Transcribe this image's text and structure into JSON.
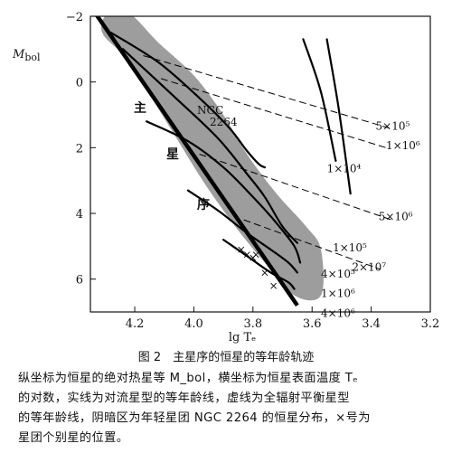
{
  "chart_data": {
    "type": "line",
    "xlabel": "lg Tₑ",
    "ylabel": "M_bol",
    "ylabel_main": "M",
    "ylabel_sub": "bol",
    "xlim": [
      4.35,
      3.2
    ],
    "ylim": [
      -2,
      7
    ],
    "x_ticks": [
      4.2,
      4.0,
      3.8,
      3.6,
      3.4,
      3.2
    ],
    "x_tick_labels": [
      "4.2",
      "4.0",
      "3.8",
      "3.6",
      "3.4",
      "3.2"
    ],
    "y_ticks": [
      -2,
      0,
      2,
      4,
      6
    ],
    "y_tick_labels": [
      "−2",
      "0",
      "2",
      "4",
      "6"
    ],
    "main_sequence_label": [
      "主",
      "星",
      "序"
    ],
    "cluster_label": [
      "NGC",
      "2264"
    ],
    "main_sequence": {
      "x": [
        4.33,
        3.65
      ],
      "y": [
        -2.05,
        6.8
      ]
    },
    "shaded_region": {
      "x": [
        4.29,
        4.22,
        4.12,
        4.0,
        3.9,
        3.82,
        3.72,
        3.62,
        3.57,
        3.57,
        3.66,
        3.76,
        3.86,
        3.97,
        4.08,
        4.22,
        4.31
      ],
      "y": [
        -2.1,
        -2.1,
        -1.2,
        -0.2,
        1.0,
        2.2,
        3.4,
        4.4,
        5.1,
        6.5,
        6.5,
        5.5,
        4.4,
        3.0,
        1.4,
        -0.6,
        -1.5
      ]
    },
    "series": [
      {
        "name": "1×10⁴",
        "style": "solid",
        "x": [
          4.28,
          4.12,
          3.98,
          3.88,
          3.82,
          3.78,
          3.76
        ],
        "y": [
          -1.5,
          -0.6,
          0.5,
          1.4,
          2.1,
          2.5,
          2.6
        ]
      },
      {
        "name": "1×10⁵",
        "style": "solid",
        "x": [
          4.24,
          4.06,
          3.92,
          3.82,
          3.76,
          3.7,
          3.65
        ],
        "y": [
          -1.0,
          0.5,
          1.7,
          2.8,
          3.5,
          4.4,
          4.9
        ]
      },
      {
        "name": "4×10⁵",
        "style": "solid",
        "x": [
          4.16,
          4.02,
          3.9,
          3.8,
          3.72,
          3.66,
          3.64
        ],
        "y": [
          1.2,
          1.8,
          2.6,
          3.5,
          4.3,
          5.0,
          5.5
        ]
      },
      {
        "name": "1×10⁶",
        "style": "solid",
        "x": [
          4.02,
          3.92,
          3.82,
          3.74,
          3.68,
          3.65
        ],
        "y": [
          3.3,
          3.9,
          4.6,
          5.1,
          5.5,
          5.8
        ]
      },
      {
        "name": "4×10⁶",
        "style": "solid",
        "x": [
          3.9,
          3.82,
          3.74,
          3.68,
          3.66
        ],
        "y": [
          4.8,
          5.3,
          5.8,
          6.1,
          6.3
        ]
      },
      {
        "name": "",
        "style": "solid",
        "x": [
          3.63,
          3.57,
          3.52
        ],
        "y": [
          -1.3,
          0.3,
          2.4
        ]
      },
      {
        "name": "",
        "style": "solid",
        "x": [
          3.55,
          3.51,
          3.47
        ],
        "y": [
          -1.3,
          0.8,
          3.4
        ]
      },
      {
        "name": "5×10⁵",
        "style": "dashed",
        "x": [
          4.17,
          3.34
        ],
        "y": [
          -0.8,
          1.4
        ]
      },
      {
        "name": "1×10⁶",
        "style": "dashed",
        "x": [
          4.11,
          3.35
        ],
        "y": [
          -0.1,
          2.0
        ]
      },
      {
        "name": "5×10⁶",
        "style": "dashed",
        "x": [
          3.98,
          3.33
        ],
        "y": [
          2.2,
          4.2
        ]
      },
      {
        "name": "2×10⁷",
        "style": "dashed",
        "x": [
          3.83,
          3.37
        ],
        "y": [
          4.2,
          5.7
        ]
      }
    ],
    "crosses": {
      "x": [
        3.84,
        3.82,
        3.8,
        3.79,
        3.76,
        3.73
      ],
      "y": [
        5.1,
        5.25,
        5.35,
        5.25,
        5.8,
        6.2
      ]
    },
    "curve_labels": [
      {
        "text": "5×10⁵",
        "x": 3.385,
        "y": 1.45
      },
      {
        "text": "1×10⁶",
        "x": 3.35,
        "y": 2.05
      },
      {
        "text": "1×10⁴",
        "x": 3.55,
        "y": 2.75
      },
      {
        "text": "5×10⁶",
        "x": 3.375,
        "y": 4.2
      },
      {
        "text": "1×10⁵",
        "x": 3.53,
        "y": 5.15
      },
      {
        "text": "4×10⁵",
        "x": 3.57,
        "y": 5.95
      },
      {
        "text": "2×10⁷",
        "x": 3.465,
        "y": 5.75
      },
      {
        "text": "1×10⁶",
        "x": 3.57,
        "y": 6.55
      },
      {
        "text": "4×10⁶",
        "x": 3.57,
        "y": 7.15
      }
    ]
  },
  "caption": {
    "title": "图 2　主星序的恒星的等年龄轨迹",
    "lines": [
      "纵坐标为恒星的绝对热星等 M_bol，横坐标为恒星表面温度 Tₑ",
      "的对数，实线为对流星型的等年龄线，虚线为全辐射平衡星型",
      "的等年龄线，阴暗区为年轻星团 NGC 2264 的恒星分布，×号为",
      "星团个别星的位置。"
    ]
  }
}
